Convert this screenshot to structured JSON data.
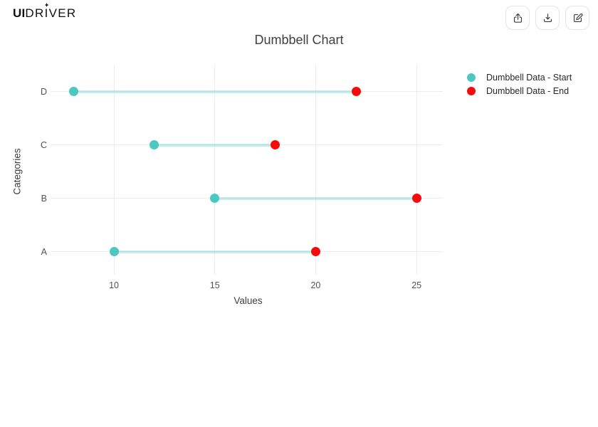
{
  "brand": {
    "ui": "UI",
    "dr": "DR",
    "i": "I",
    "ver": "VER"
  },
  "toolbar": {
    "buttons": [
      {
        "name": "Share",
        "icon": "share-icon"
      },
      {
        "name": "Download",
        "icon": "download-icon"
      },
      {
        "name": "Edit",
        "icon": "edit-icon"
      }
    ]
  },
  "colors": {
    "start": "#4cc8c0",
    "end": "#f70a0a",
    "connector": "rgba(76,200,192,0.32)",
    "grid": "#ececec"
  },
  "chart_data": {
    "type": "dumbbell",
    "title": "Dumbbell Chart",
    "xlabel": "Values",
    "ylabel": "Categories",
    "categories_top_to_bottom": [
      "D",
      "C",
      "B",
      "A"
    ],
    "x_ticks": [
      10,
      15,
      20,
      25
    ],
    "x_range": [
      7.0,
      26.3
    ],
    "grid": true,
    "legend_position": "right",
    "rows": [
      {
        "category": "D",
        "start": 8,
        "end": 22
      },
      {
        "category": "C",
        "start": 12,
        "end": 18
      },
      {
        "category": "B",
        "start": 15,
        "end": 25
      },
      {
        "category": "A",
        "start": 10,
        "end": 20
      }
    ],
    "legend": [
      {
        "label": "Dumbbell Data - Start",
        "color": "#4cc8c0"
      },
      {
        "label": "Dumbbell Data - End",
        "color": "#f70a0a"
      }
    ]
  }
}
